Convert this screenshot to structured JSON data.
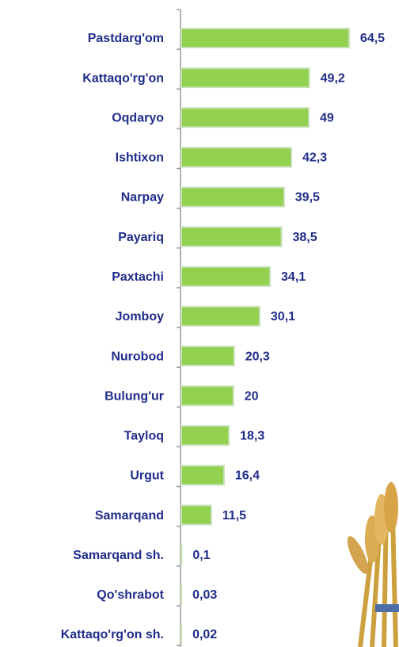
{
  "chart_data": {
    "type": "bar",
    "orientation": "horizontal",
    "categories": [
      "Pastdarg'om",
      "Kattaqo'rg'on",
      "Oqdaryo",
      "Ishtixon",
      "Narpay",
      "Payariq",
      "Paxtachi",
      "Jomboy",
      "Nurobod",
      "Bulung'ur",
      "Tayloq",
      "Urgut",
      "Samarqand",
      "Samarqand sh.",
      "Qo'shrabot",
      "Kattaqo'rg'on sh."
    ],
    "values": [
      64.5,
      49.2,
      49,
      42.3,
      39.5,
      38.5,
      34.1,
      30.1,
      20.3,
      20,
      18.3,
      16.4,
      11.5,
      0.1,
      0.03,
      0.02
    ],
    "value_labels": [
      "64,5",
      "49,2",
      "49",
      "42,3",
      "39,5",
      "38,5",
      "34,1",
      "30,1",
      "20,3",
      "20",
      "18,3",
      "16,4",
      "11,5",
      "0,1",
      "0,03",
      "0,02"
    ],
    "color": "#92d050",
    "xlim": [
      0,
      70
    ]
  }
}
